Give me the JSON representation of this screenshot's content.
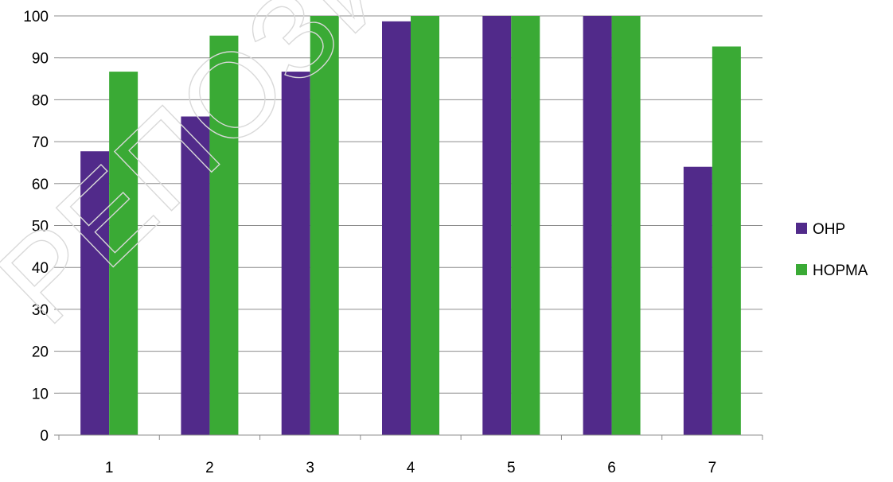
{
  "watermark": "РЕПОЗИТОРИЙ",
  "chart_data": {
    "type": "bar",
    "title": "",
    "xlabel": "",
    "ylabel": "",
    "categories": [
      "1",
      "2",
      "3",
      "4",
      "5",
      "6",
      "7"
    ],
    "ylim": [
      0,
      100
    ],
    "yticks": [
      0,
      10,
      20,
      30,
      40,
      50,
      60,
      70,
      80,
      90,
      100
    ],
    "grid": true,
    "legend_position": "right",
    "series": [
      {
        "name": "ОНР",
        "color": "#512a8a",
        "values": [
          67.7,
          76,
          86.7,
          98.7,
          100,
          100,
          64
        ]
      },
      {
        "name": "НОРМА",
        "color": "#3aaa35",
        "values": [
          86.7,
          95.3,
          100,
          100,
          100,
          100,
          92.7
        ]
      }
    ]
  }
}
